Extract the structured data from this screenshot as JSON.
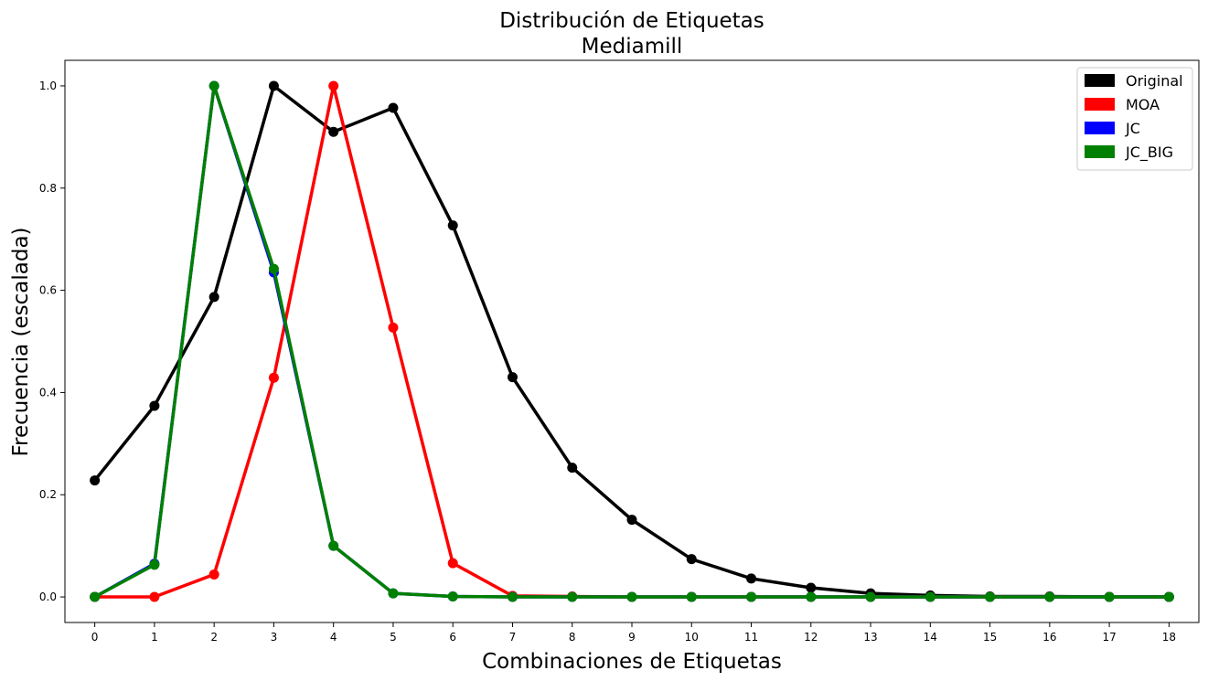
{
  "chart_data": {
    "type": "line",
    "title": "Distribución de Etiquetas",
    "subtitle": "Mediamill",
    "xlabel": "Combinaciones de Etiquetas",
    "ylabel": "Frecuencia (escalada)",
    "x": [
      0,
      1,
      2,
      3,
      4,
      5,
      6,
      7,
      8,
      9,
      10,
      11,
      12,
      13,
      14,
      15,
      16,
      17,
      18
    ],
    "xticks": [
      "0",
      "1",
      "2",
      "3",
      "4",
      "5",
      "6",
      "7",
      "8",
      "9",
      "10",
      "11",
      "12",
      "13",
      "14",
      "15",
      "16",
      "17",
      "18"
    ],
    "yticks": [
      "0.0",
      "0.2",
      "0.4",
      "0.6",
      "0.8",
      "1.0"
    ],
    "ytick_values": [
      0.0,
      0.2,
      0.4,
      0.6,
      0.8,
      1.0
    ],
    "xlim": [
      -0.5,
      18.5
    ],
    "ylim": [
      -0.05,
      1.05
    ],
    "grid": false,
    "legend_position": "top-right",
    "series": [
      {
        "name": "Original",
        "color": "#000000",
        "values": [
          0.228,
          0.374,
          0.587,
          1.0,
          0.91,
          0.957,
          0.727,
          0.43,
          0.253,
          0.151,
          0.074,
          0.036,
          0.018,
          0.007,
          0.003,
          0.001,
          0.001,
          0.0,
          0.0
        ]
      },
      {
        "name": "MOA",
        "color": "#ff0000",
        "values": [
          0.0,
          0.0,
          0.044,
          0.429,
          1.0,
          0.527,
          0.066,
          0.002,
          0.001,
          0.0,
          0.0,
          0.0,
          0.0,
          0.0,
          0.0,
          0.0,
          0.0,
          0.0,
          0.0
        ]
      },
      {
        "name": "JC",
        "color": "#0000ff",
        "values": [
          0.0,
          0.065,
          1.0,
          0.635,
          0.1,
          0.007,
          0.001,
          0.0,
          0.0,
          0.0,
          0.0,
          0.0,
          0.0,
          0.0,
          0.0,
          0.0,
          0.0,
          0.0,
          0.0
        ]
      },
      {
        "name": "JC_BIG",
        "color": "#008000",
        "values": [
          0.0,
          0.063,
          1.0,
          0.642,
          0.1,
          0.007,
          0.001,
          0.0,
          0.0,
          0.0,
          0.0,
          0.0,
          0.0,
          0.0,
          0.0,
          0.0,
          0.0,
          0.0,
          0.0
        ]
      }
    ]
  }
}
